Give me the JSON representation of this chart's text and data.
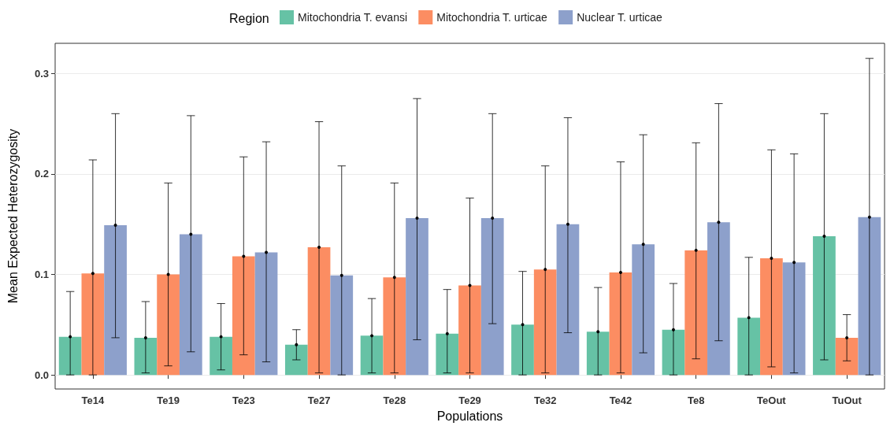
{
  "chart_data": {
    "type": "bar",
    "xlabel": "Populations",
    "ylabel": "Mean Expected Heterozygosity",
    "legend_title": "Region",
    "legend": "top",
    "categories": [
      "Te14",
      "Te19",
      "Te23",
      "Te27",
      "Te28",
      "Te29",
      "Te32",
      "Te42",
      "Te8",
      "TeOut",
      "TuOut"
    ],
    "ylim": [
      -0.014,
      0.33
    ],
    "yticks": [
      {
        "value": 0,
        "label": "0.0"
      },
      {
        "value": 0.1,
        "label": "0.1"
      },
      {
        "value": 0.2,
        "label": "0.2"
      },
      {
        "value": 0.3,
        "label": "0.3"
      }
    ],
    "grid": "y",
    "series": [
      {
        "name": "Mitochondria T. evansi",
        "color": "#66c2a5",
        "values": [
          0.038,
          0.037,
          0.038,
          0.03,
          0.039,
          0.041,
          0.05,
          0.043,
          0.045,
          0.057,
          0.138
        ],
        "errors": [
          [
            0,
            0.083
          ],
          [
            0.002,
            0.073
          ],
          [
            0.005,
            0.071
          ],
          [
            0.015,
            0.045
          ],
          [
            0.002,
            0.076
          ],
          [
            0.002,
            0.085
          ],
          [
            0,
            0.103
          ],
          [
            0,
            0.087
          ],
          [
            0,
            0.091
          ],
          [
            0,
            0.117
          ],
          [
            0.015,
            0.26
          ]
        ]
      },
      {
        "name": "Mitochondria T. urticae",
        "color": "#fc8d62",
        "values": [
          0.101,
          0.1,
          0.118,
          0.127,
          0.097,
          0.089,
          0.105,
          0.102,
          0.124,
          0.116,
          0.037
        ],
        "errors": [
          [
            0,
            0.214
          ],
          [
            0.009,
            0.191
          ],
          [
            0.02,
            0.217
          ],
          [
            0.002,
            0.252
          ],
          [
            0.002,
            0.191
          ],
          [
            0.002,
            0.176
          ],
          [
            0.002,
            0.208
          ],
          [
            0.002,
            0.212
          ],
          [
            0.016,
            0.231
          ],
          [
            0.008,
            0.224
          ],
          [
            0.014,
            0.06
          ]
        ]
      },
      {
        "name": "Nuclear T. urticae",
        "color": "#8da0cb",
        "values": [
          0.149,
          0.14,
          0.122,
          0.099,
          0.156,
          0.156,
          0.15,
          0.13,
          0.152,
          0.112,
          0.157
        ],
        "errors": [
          [
            0.037,
            0.26
          ],
          [
            0.023,
            0.258
          ],
          [
            0.013,
            0.232
          ],
          [
            0,
            0.208
          ],
          [
            0.035,
            0.275
          ],
          [
            0.051,
            0.26
          ],
          [
            0.042,
            0.256
          ],
          [
            0.022,
            0.239
          ],
          [
            0.034,
            0.27
          ],
          [
            0.002,
            0.22
          ],
          [
            0,
            0.315
          ]
        ]
      }
    ]
  }
}
